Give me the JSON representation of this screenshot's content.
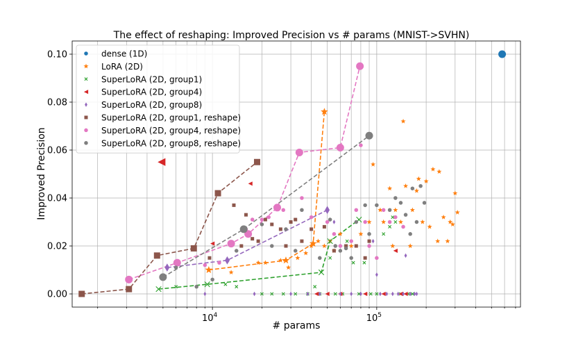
{
  "chart_data": {
    "type": "scatter",
    "title": "The effect of reshaping: Improved Precision vs # params (MNIST->SVHN)",
    "xlabel": "# params",
    "ylabel": "Improved Precision",
    "xscale": "log",
    "xlim": [
      1400,
      750000
    ],
    "ylim": [
      -0.0055,
      0.1055
    ],
    "yticks": [
      0.0,
      0.02,
      0.04,
      0.06,
      0.08,
      0.1
    ],
    "ytick_labels": [
      "0.00",
      "0.02",
      "0.04",
      "0.06",
      "0.08",
      "0.10"
    ],
    "xticks": [
      10000,
      100000
    ],
    "xtick_labels": [
      {
        "base": "10",
        "exp": "4"
      },
      {
        "base": "10",
        "exp": "5"
      }
    ],
    "grid": true,
    "legend_position": "upper-left",
    "series": [
      {
        "name": "dense (1D)",
        "color": "#1f77b4",
        "marker": "circle",
        "points": [
          [
            580000,
            0.1
          ]
        ],
        "front": [
          [
            580000,
            0.1
          ]
        ]
      },
      {
        "name": "LoRA (2D)",
        "color": "#ff7f0e",
        "marker": "star",
        "points": [
          [
            13000,
            0.009
          ],
          [
            19000,
            0.013
          ],
          [
            21000,
            0.013
          ],
          [
            26000,
            0.014
          ],
          [
            29000,
            0.011
          ],
          [
            33000,
            0.015
          ],
          [
            37000,
            0.017
          ],
          [
            40000,
            0.02
          ],
          [
            44000,
            0.022
          ],
          [
            48000,
            0.02
          ],
          [
            52000,
            0.022
          ],
          [
            55000,
            0.018
          ],
          [
            60000,
            0.025
          ],
          [
            70000,
            0.02
          ],
          [
            80000,
            0.025
          ],
          [
            90000,
            0.03
          ],
          [
            95000,
            0.054
          ],
          [
            105000,
            0.035
          ],
          [
            110000,
            0.03
          ],
          [
            120000,
            0.044
          ],
          [
            125000,
            0.02
          ],
          [
            130000,
            0.035
          ],
          [
            140000,
            0.03
          ],
          [
            145000,
            0.072
          ],
          [
            150000,
            0.045
          ],
          [
            160000,
            0.02
          ],
          [
            165000,
            0.035
          ],
          [
            175000,
            0.043
          ],
          [
            180000,
            0.048
          ],
          [
            190000,
            0.03
          ],
          [
            200000,
            0.047
          ],
          [
            210000,
            0.028
          ],
          [
            220000,
            0.052
          ],
          [
            235000,
            0.022
          ],
          [
            240000,
            0.051
          ],
          [
            255000,
            0.032
          ],
          [
            270000,
            0.022
          ],
          [
            280000,
            0.03
          ],
          [
            290000,
            0.029
          ],
          [
            300000,
            0.042
          ],
          [
            310000,
            0.034
          ]
        ],
        "front": [
          [
            9500,
            0.01
          ],
          [
            28000,
            0.014
          ],
          [
            41000,
            0.021
          ],
          [
            48000,
            0.076
          ]
        ]
      },
      {
        "name": "SuperLoRA (2D, group1)",
        "color": "#2ca02c",
        "marker": "x",
        "points": [
          [
            6000,
            0.003
          ],
          [
            12000,
            0.004
          ],
          [
            14000,
            0.003
          ],
          [
            20000,
            0.0
          ],
          [
            23000,
            0.0
          ],
          [
            27000,
            0.0
          ],
          [
            32000,
            0.0
          ],
          [
            38000,
            0.0
          ],
          [
            42000,
            0.003
          ],
          [
            45000,
            0.0
          ],
          [
            52000,
            0.015
          ],
          [
            56000,
            0.0
          ],
          [
            62000,
            0.0
          ],
          [
            66000,
            0.022
          ],
          [
            72000,
            0.013
          ],
          [
            78000,
            0.0
          ],
          [
            84000,
            0.013
          ],
          [
            92000,
            0.0
          ],
          [
            100000,
            0.0
          ],
          [
            110000,
            0.025
          ],
          [
            120000,
            0.028
          ],
          [
            125000,
            0.032
          ],
          [
            130000,
            0.03
          ],
          [
            140000,
            0.0
          ],
          [
            155000,
            0.0
          ],
          [
            165000,
            0.0
          ]
        ],
        "front": [
          [
            4700,
            0.002
          ],
          [
            9300,
            0.004
          ],
          [
            46000,
            0.009
          ],
          [
            52000,
            0.022
          ],
          [
            78000,
            0.031
          ]
        ]
      },
      {
        "name": "SuperLoRA (2D, group4)",
        "color": "#d62728",
        "marker": "triangle-left",
        "points": [
          [
            10000,
            0.021
          ],
          [
            17000,
            0.046
          ],
          [
            43000,
            0.0
          ],
          [
            50000,
            0.0
          ],
          [
            60000,
            0.0
          ],
          [
            85000,
            0.0
          ],
          [
            110000,
            0.0
          ],
          [
            130000,
            0.018
          ],
          [
            140000,
            0.0
          ],
          [
            150000,
            0.0
          ]
        ],
        "front": [
          [
            4900,
            0.055
          ]
        ]
      },
      {
        "name": "SuperLoRA (2D, group8)",
        "color": "#9467bd",
        "marker": "diamond",
        "points": [
          [
            9000,
            0.0
          ],
          [
            12500,
            0.014
          ],
          [
            18000,
            0.0
          ],
          [
            30000,
            0.0
          ],
          [
            38000,
            0.0
          ],
          [
            45000,
            0.0
          ],
          [
            55000,
            0.03
          ],
          [
            60000,
            0.0
          ],
          [
            70000,
            0.0
          ],
          [
            80000,
            0.0
          ],
          [
            95000,
            0.022
          ],
          [
            100000,
            0.008
          ],
          [
            105000,
            0.0
          ],
          [
            115000,
            0.0
          ],
          [
            125000,
            0.0
          ],
          [
            135000,
            0.0
          ],
          [
            145000,
            0.0
          ],
          [
            150000,
            0.016
          ],
          [
            160000,
            0.0
          ],
          [
            170000,
            0.0
          ],
          [
            175000,
            0.0
          ]
        ],
        "front": [
          [
            5300,
            0.011
          ],
          [
            12300,
            0.014
          ],
          [
            50000,
            0.035
          ]
        ]
      },
      {
        "name": "SuperLoRA (2D, group1, reshape)",
        "color": "#8c564b",
        "marker": "square",
        "points": [
          [
            9600,
            0.015
          ],
          [
            13500,
            0.037
          ],
          [
            15000,
            0.02
          ],
          [
            16000,
            0.033
          ],
          [
            17500,
            0.023
          ],
          [
            19000,
            0.022
          ],
          [
            21000,
            0.031
          ],
          [
            23000,
            0.029
          ],
          [
            26000,
            0.027
          ],
          [
            28000,
            0.02
          ],
          [
            30000,
            0.03
          ],
          [
            32000,
            0.031
          ],
          [
            35000,
            0.022
          ],
          [
            40000,
            0.027
          ],
          [
            48000,
            0.028
          ],
          [
            55000,
            0.018
          ],
          [
            65000,
            0.02
          ],
          [
            75000,
            0.02
          ],
          [
            85000,
            0.015
          ],
          [
            90000,
            0.022
          ]
        ],
        "front": [
          [
            1600,
            0.0
          ],
          [
            3100,
            0.002
          ],
          [
            4600,
            0.016
          ],
          [
            7700,
            0.019
          ],
          [
            10800,
            0.042
          ],
          [
            18700,
            0.055
          ]
        ]
      },
      {
        "name": "SuperLoRA (2D, group4, reshape)",
        "color": "#e377c2",
        "marker": "circle",
        "points": [
          [
            9000,
            0.012
          ],
          [
            11000,
            0.013
          ],
          [
            16000,
            0.027
          ],
          [
            17500,
            0.031
          ],
          [
            20000,
            0.031
          ],
          [
            22000,
            0.032
          ],
          [
            27000,
            0.035
          ],
          [
            35000,
            0.04
          ],
          [
            40000,
            0.032
          ],
          [
            50000,
            0.03
          ],
          [
            55000,
            0.025
          ],
          [
            60000,
            0.02
          ],
          [
            70000,
            0.022
          ],
          [
            75000,
            0.035
          ],
          [
            80000,
            0.062
          ],
          [
            85000,
            0.03
          ],
          [
            90000,
            0.02
          ],
          [
            100000,
            0.015
          ],
          [
            110000,
            0.035
          ],
          [
            120000,
            0.03
          ],
          [
            130000,
            0.032
          ],
          [
            145000,
            0.028
          ]
        ],
        "front": [
          [
            3100,
            0.006
          ],
          [
            6100,
            0.013
          ],
          [
            13000,
            0.021
          ],
          [
            16500,
            0.025
          ],
          [
            24800,
            0.036
          ],
          [
            33800,
            0.059
          ],
          [
            60000,
            0.061
          ],
          [
            79000,
            0.095
          ]
        ]
      },
      {
        "name": "SuperLoRA (2D, group8, reshape)",
        "color": "#7f7f7f",
        "marker": "circle",
        "points": [
          [
            6000,
            0.011
          ],
          [
            8000,
            0.003
          ],
          [
            10000,
            0.006
          ],
          [
            14000,
            0.018
          ],
          [
            20000,
            0.029
          ],
          [
            23000,
            0.02
          ],
          [
            28000,
            0.027
          ],
          [
            32000,
            0.018
          ],
          [
            35000,
            0.035
          ],
          [
            45000,
            0.015
          ],
          [
            52000,
            0.031
          ],
          [
            56000,
            0.02
          ],
          [
            60000,
            0.018
          ],
          [
            65000,
            0.019
          ],
          [
            70000,
            0.015
          ],
          [
            75000,
            0.03
          ],
          [
            85000,
            0.037
          ],
          [
            90000,
            0.025
          ],
          [
            100000,
            0.037
          ],
          [
            120000,
            0.035
          ],
          [
            130000,
            0.04
          ],
          [
            140000,
            0.038
          ],
          [
            150000,
            0.033
          ],
          [
            160000,
            0.025
          ],
          [
            165000,
            0.044
          ],
          [
            175000,
            0.03
          ],
          [
            185000,
            0.045
          ],
          [
            195000,
            0.038
          ]
        ],
        "front": [
          [
            5000,
            0.007
          ],
          [
            15500,
            0.027
          ],
          [
            90000,
            0.066
          ]
        ]
      }
    ]
  }
}
